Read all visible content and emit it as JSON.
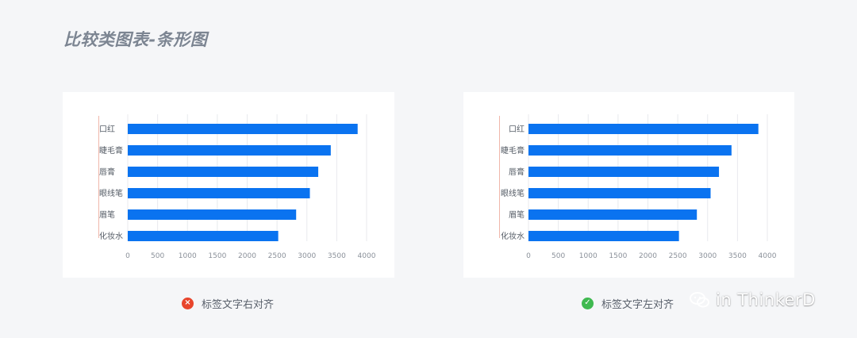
{
  "page": {
    "title": "比较类图表-条形图"
  },
  "captions": {
    "left": "标签文字右对齐",
    "right": "标签文字左对齐"
  },
  "watermark": {
    "text": "in ThinkerD",
    "icon": "wechat-icon"
  },
  "colors": {
    "bar": "#0a73f0",
    "grid": "#e8eaee",
    "bad": "#e8452c",
    "good": "#3fb950"
  },
  "chart_data": [
    {
      "type": "bar",
      "orientation": "horizontal",
      "label_alignment": "left",
      "categories": [
        "口红",
        "睫毛膏",
        "唇膏",
        "眼线笔",
        "眉笔",
        "化妆水"
      ],
      "values": [
        3850,
        3400,
        3190,
        3050,
        2820,
        2520
      ],
      "xlim": [
        0,
        4000
      ],
      "xticks": [
        0,
        500,
        1000,
        1500,
        2000,
        2500,
        3000,
        3500,
        4000
      ],
      "grid": true,
      "title": "",
      "xlabel": "",
      "ylabel": ""
    },
    {
      "type": "bar",
      "orientation": "horizontal",
      "label_alignment": "right",
      "categories": [
        "口红",
        "睫毛膏",
        "唇膏",
        "眼线笔",
        "眉笔",
        "化妆水"
      ],
      "values": [
        3850,
        3400,
        3190,
        3050,
        2820,
        2520
      ],
      "xlim": [
        0,
        4000
      ],
      "xticks": [
        0,
        500,
        1000,
        1500,
        2000,
        2500,
        3000,
        3500,
        4000
      ],
      "grid": true,
      "title": "",
      "xlabel": "",
      "ylabel": ""
    }
  ]
}
